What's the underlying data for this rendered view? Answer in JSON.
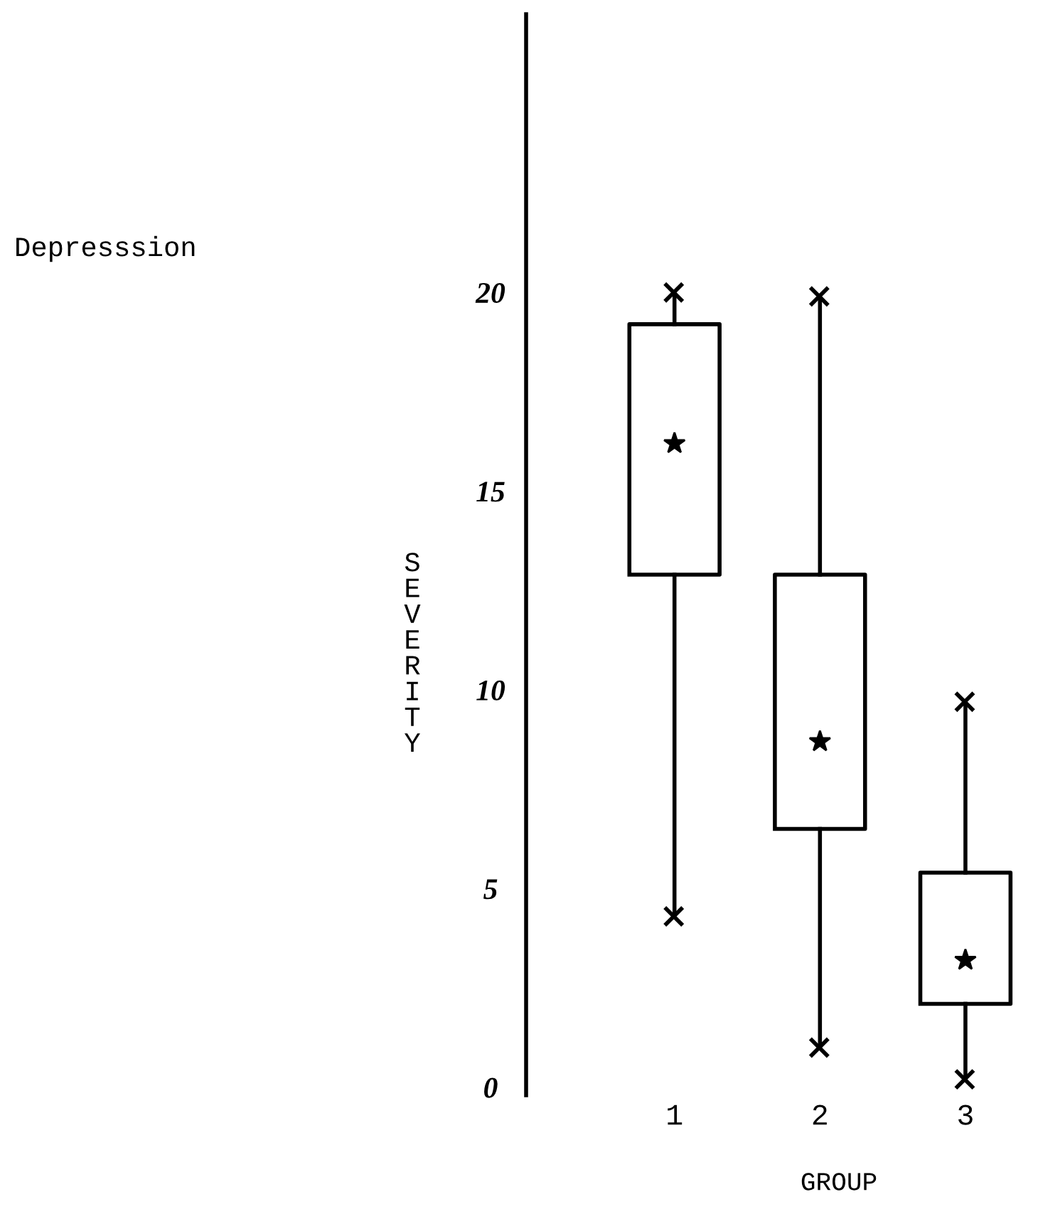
{
  "chart_data": {
    "type": "box",
    "title": "Depresssion",
    "ylabel": "SEVERITY",
    "xlabel": "GROUP",
    "categories": [
      "1",
      "2",
      "3"
    ],
    "boxes": [
      {
        "low": 4.3,
        "q1": 12.9,
        "median": 16.2,
        "q3": 19.2,
        "high": 20
      },
      {
        "low": 1.0,
        "q1": 6.5,
        "median": 8.7,
        "q3": 12.9,
        "high": 19.9
      },
      {
        "low": 0.2,
        "q1": 2.1,
        "median": 3.2,
        "q3": 5.4,
        "high": 9.7
      }
    ],
    "color": "#000000",
    "ylim": [
      -0.2,
      27
    ],
    "yticks": [
      0,
      5,
      10,
      15,
      20
    ],
    "grid": false,
    "marker": "star"
  }
}
